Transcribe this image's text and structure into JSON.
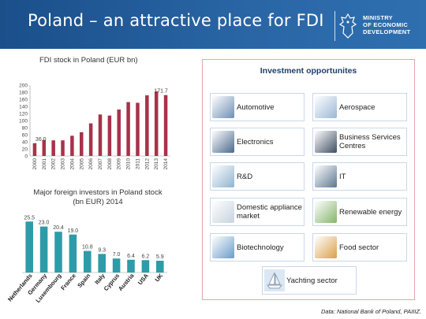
{
  "header": {
    "title": "Poland – an attractive place for FDI",
    "ministry_lines": [
      "MINISTRY",
      "OF ECONOMIC",
      "DEVELOPMENT"
    ]
  },
  "colors": {
    "header_blue": "#2a66a6",
    "bar_blue": "#2e9ba8",
    "panel_border": "#e3a7a2"
  },
  "chart_data": [
    {
      "type": "bar",
      "title": "FDI stock in Poland (EUR bn)",
      "categories": [
        "2000",
        "2001",
        "2002",
        "2003",
        "2004",
        "2005",
        "2006",
        "2007",
        "2008",
        "2009",
        "2010",
        "2011",
        "2012",
        "2013",
        "2014"
      ],
      "values": [
        36.0,
        45,
        44,
        44,
        57,
        67,
        92,
        117,
        114,
        131,
        152,
        150,
        171,
        182,
        171.7
      ],
      "data_labels": [
        {
          "index": 0,
          "text": "36.0"
        },
        {
          "index": 14,
          "text": "171.7"
        }
      ],
      "ylim": [
        0,
        200
      ],
      "yticks": [
        "0",
        "20",
        "40",
        "60",
        "80",
        "100",
        "120",
        "140",
        "160",
        "180",
        "200"
      ],
      "bar_color": "#a8324a"
    },
    {
      "type": "bar",
      "title": "Major foreign investors in Poland stock (bn EUR) 2014",
      "categories": [
        "Netherlands",
        "Germany",
        "Luxembourg",
        "France",
        "Spain",
        "Italy",
        "Cyprus",
        "Austria",
        "USA",
        "UK"
      ],
      "values": [
        25.5,
        23.0,
        20.4,
        19.0,
        10.8,
        9.3,
        7.0,
        6.4,
        6.2,
        5.9
      ],
      "data_labels": [
        "25.5",
        "23.0",
        "20.4",
        "19.0",
        "10.8",
        "9.3",
        "7.0",
        "6.4",
        "6.2",
        "5.9"
      ],
      "bar_color": "#2e9ba8"
    }
  ],
  "investment": {
    "title": "Investment opportunites",
    "items": [
      {
        "label": "Automotive",
        "icon": "car-icon"
      },
      {
        "label": "Aerospace",
        "icon": "airplane-icon"
      },
      {
        "label": "Electronics",
        "icon": "monitor-icon"
      },
      {
        "label": "Business Services Centres",
        "icon": "office-worker-icon"
      },
      {
        "label": "R&D",
        "icon": "lab-icon"
      },
      {
        "label": "IT",
        "icon": "laptop-icon"
      },
      {
        "label": "Domestic appliance market",
        "icon": "washing-machine-icon"
      },
      {
        "label": "Renewable energy",
        "icon": "wind-turbine-icon"
      },
      {
        "label": "Biotechnology",
        "icon": "dna-icon"
      },
      {
        "label": "Food sector",
        "icon": "food-icon"
      }
    ],
    "yachting": {
      "label": "Yachting sector",
      "icon": "yacht-icon"
    }
  },
  "source": "Data: National Bank of Poland, PAIIIZ."
}
